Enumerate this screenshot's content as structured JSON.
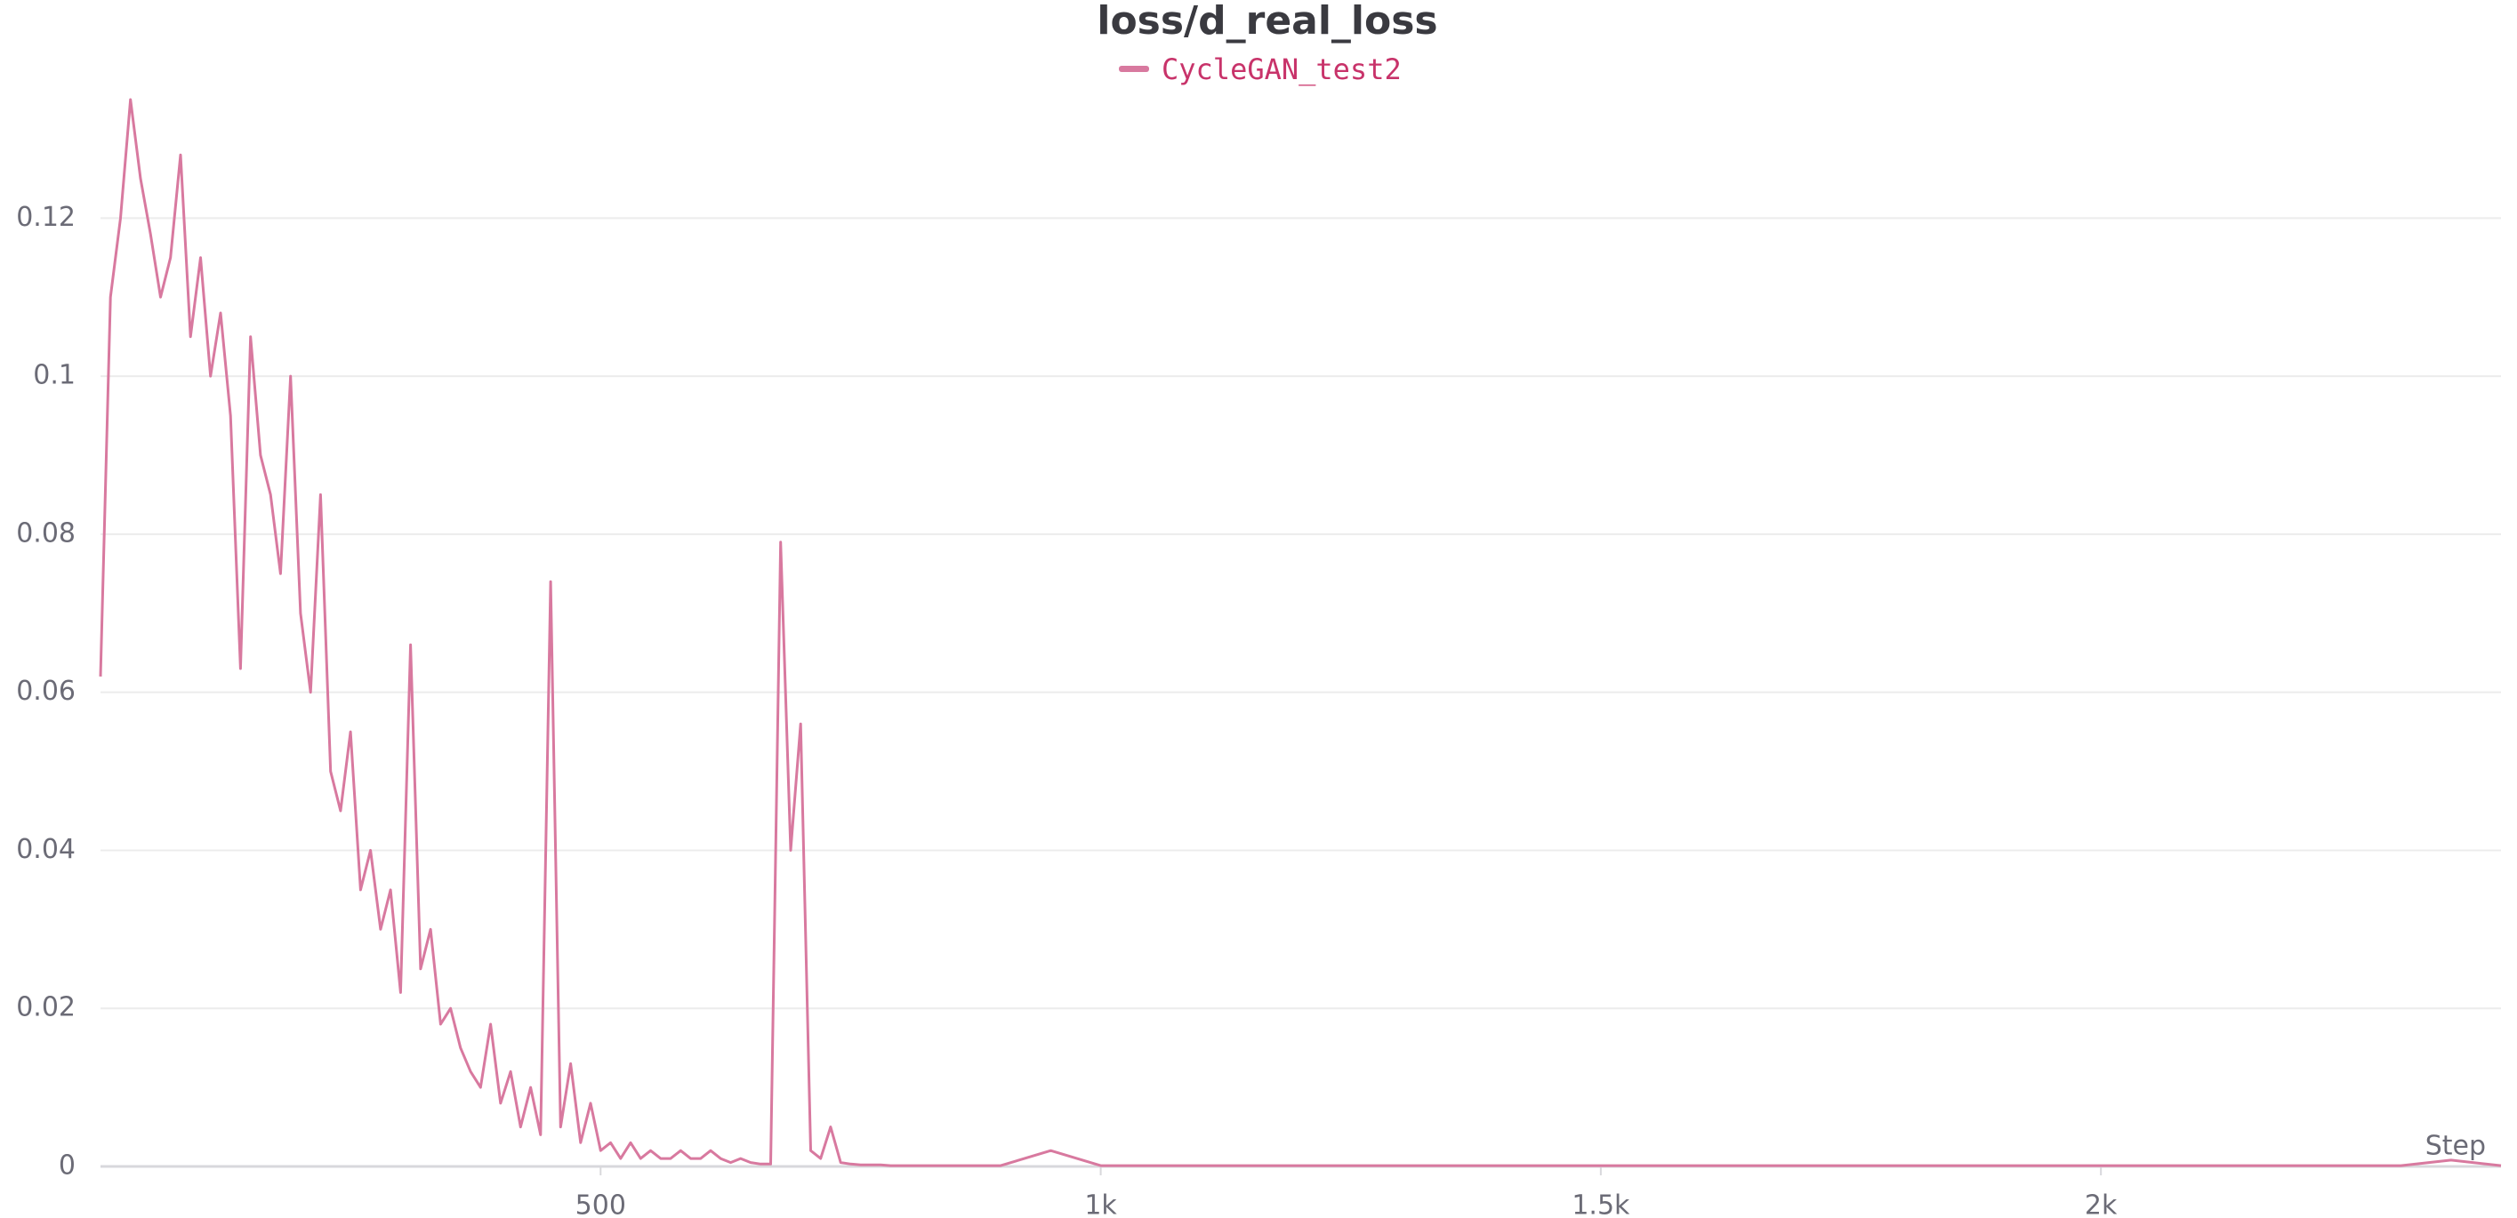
{
  "chart_data": {
    "type": "line",
    "title": "loss/d_real_loss",
    "xlabel": "Step",
    "x": [
      0,
      10,
      20,
      30,
      40,
      50,
      60,
      70,
      80,
      90,
      100,
      110,
      120,
      130,
      140,
      150,
      160,
      170,
      180,
      190,
      200,
      210,
      220,
      230,
      240,
      250,
      260,
      270,
      280,
      290,
      300,
      310,
      320,
      330,
      340,
      350,
      360,
      370,
      380,
      390,
      400,
      410,
      420,
      430,
      440,
      450,
      460,
      470,
      480,
      490,
      500,
      510,
      520,
      530,
      540,
      550,
      560,
      570,
      580,
      590,
      600,
      610,
      620,
      630,
      640,
      650,
      660,
      670,
      680,
      690,
      700,
      710,
      720,
      730,
      740,
      750,
      760,
      770,
      780,
      790,
      800,
      850,
      900,
      950,
      1000,
      1050,
      1100,
      1150,
      1200,
      1250,
      1300,
      1350,
      1400,
      1450,
      1500,
      1550,
      1600,
      1650,
      1700,
      1750,
      1800,
      1850,
      1900,
      1950,
      2000,
      2050,
      2100,
      2150,
      2200,
      2250,
      2300,
      2350,
      2400
    ],
    "series": [
      {
        "name": "CycleGAN_test2",
        "color": "#d8799f",
        "values": [
          0.062,
          0.11,
          0.12,
          0.135,
          0.125,
          0.118,
          0.11,
          0.115,
          0.128,
          0.105,
          0.115,
          0.1,
          0.108,
          0.095,
          0.063,
          0.105,
          0.09,
          0.085,
          0.075,
          0.1,
          0.07,
          0.06,
          0.085,
          0.05,
          0.045,
          0.055,
          0.035,
          0.04,
          0.03,
          0.035,
          0.022,
          0.066,
          0.025,
          0.03,
          0.018,
          0.02,
          0.015,
          0.012,
          0.01,
          0.018,
          0.008,
          0.012,
          0.005,
          0.01,
          0.004,
          0.074,
          0.005,
          0.013,
          0.003,
          0.008,
          0.002,
          0.003,
          0.001,
          0.003,
          0.001,
          0.002,
          0.001,
          0.001,
          0.002,
          0.001,
          0.001,
          0.002,
          0.001,
          0.0005,
          0.001,
          0.0005,
          0.0003,
          0.0003,
          0.079,
          0.04,
          0.056,
          0.002,
          0.001,
          0.005,
          0.0005,
          0.0003,
          0.0002,
          0.0002,
          0.0002,
          0.0001,
          0.0001,
          0.0001,
          0.0001,
          0.002,
          0.0001,
          0.0001,
          0.0001,
          0.0001,
          0.0001,
          0.0001,
          0.0001,
          0.0001,
          0.0001,
          0.0001,
          0.0001,
          0.0001,
          0.0001,
          0.0001,
          0.0001,
          0.0001,
          0.0001,
          0.0001,
          0.0001,
          0.0001,
          0.0001,
          0.0001,
          0.0001,
          0.0001,
          0.0001,
          0.0001,
          0.0001,
          0.0008,
          0.0001
        ]
      }
    ],
    "xlim": [
      0,
      2400
    ],
    "ylim": [
      0,
      0.135
    ],
    "xticks": [
      500,
      {
        "value": 1000,
        "label": "1k"
      },
      {
        "value": 1500,
        "label": "1.5k"
      },
      {
        "value": 2000,
        "label": "2k"
      }
    ],
    "yticks": [
      0,
      0.02,
      0.04,
      0.06,
      0.08,
      0.1,
      0.12
    ],
    "grid": true
  }
}
